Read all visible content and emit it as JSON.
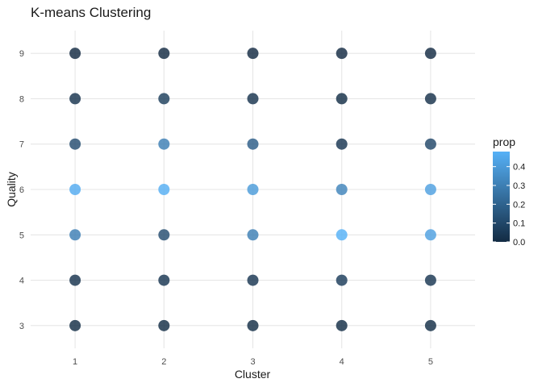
{
  "chart_data": {
    "type": "scatter",
    "title": "K-means Clustering",
    "xlabel": "Cluster",
    "ylabel": "Quality",
    "x_ticks": [
      1,
      2,
      3,
      4,
      5
    ],
    "y_ticks": [
      3,
      4,
      5,
      6,
      7,
      8,
      9
    ],
    "xlim": [
      0.5,
      5.5
    ],
    "ylim": [
      2.5,
      9.5
    ],
    "grid": true,
    "legend": {
      "title": "prop",
      "placement": "right",
      "range": [
        0.0,
        0.48
      ],
      "ticks": [
        0.0,
        0.1,
        0.2,
        0.3,
        0.4
      ],
      "tick_labels": [
        "0.0",
        "0.1",
        "0.2",
        "0.3",
        "0.4"
      ],
      "color_low": "#132B43",
      "color_high": "#56B1F7"
    },
    "points": [
      {
        "x": 1,
        "y": 3,
        "prop": 0.01
      },
      {
        "x": 1,
        "y": 4,
        "prop": 0.03
      },
      {
        "x": 1,
        "y": 5,
        "prop": 0.3
      },
      {
        "x": 1,
        "y": 6,
        "prop": 0.46
      },
      {
        "x": 1,
        "y": 7,
        "prop": 0.12
      },
      {
        "x": 1,
        "y": 8,
        "prop": 0.03
      },
      {
        "x": 1,
        "y": 9,
        "prop": 0.0
      },
      {
        "x": 2,
        "y": 3,
        "prop": 0.01
      },
      {
        "x": 2,
        "y": 4,
        "prop": 0.04
      },
      {
        "x": 2,
        "y": 5,
        "prop": 0.12
      },
      {
        "x": 2,
        "y": 6,
        "prop": 0.47
      },
      {
        "x": 2,
        "y": 7,
        "prop": 0.3
      },
      {
        "x": 2,
        "y": 8,
        "prop": 0.07
      },
      {
        "x": 2,
        "y": 9,
        "prop": 0.0
      },
      {
        "x": 3,
        "y": 3,
        "prop": 0.01
      },
      {
        "x": 3,
        "y": 4,
        "prop": 0.04
      },
      {
        "x": 3,
        "y": 5,
        "prop": 0.3
      },
      {
        "x": 3,
        "y": 6,
        "prop": 0.4
      },
      {
        "x": 3,
        "y": 7,
        "prop": 0.18
      },
      {
        "x": 3,
        "y": 8,
        "prop": 0.03
      },
      {
        "x": 3,
        "y": 9,
        "prop": 0.0
      },
      {
        "x": 4,
        "y": 3,
        "prop": 0.01
      },
      {
        "x": 4,
        "y": 4,
        "prop": 0.06
      },
      {
        "x": 4,
        "y": 5,
        "prop": 0.48
      },
      {
        "x": 4,
        "y": 6,
        "prop": 0.32
      },
      {
        "x": 4,
        "y": 7,
        "prop": 0.04
      },
      {
        "x": 4,
        "y": 8,
        "prop": 0.01
      },
      {
        "x": 4,
        "y": 9,
        "prop": 0.0
      },
      {
        "x": 5,
        "y": 3,
        "prop": 0.01
      },
      {
        "x": 5,
        "y": 4,
        "prop": 0.04
      },
      {
        "x": 5,
        "y": 5,
        "prop": 0.42
      },
      {
        "x": 5,
        "y": 6,
        "prop": 0.42
      },
      {
        "x": 5,
        "y": 7,
        "prop": 0.1
      },
      {
        "x": 5,
        "y": 8,
        "prop": 0.02
      },
      {
        "x": 5,
        "y": 9,
        "prop": 0.0
      }
    ]
  }
}
